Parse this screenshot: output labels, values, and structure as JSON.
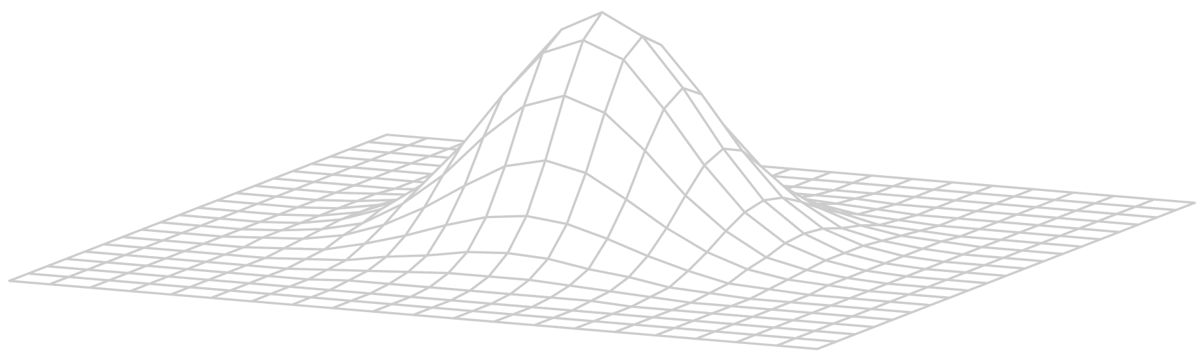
{
  "chart_data": {
    "type": "surface",
    "x": [
      -3,
      -2.7,
      -2.4,
      -2.1,
      -1.8,
      -1.5,
      -1.2,
      -0.9,
      -0.6,
      -0.3,
      0,
      0.3,
      0.6,
      0.9,
      1.2,
      1.5,
      1.8,
      2.1,
      2.4,
      2.7,
      3
    ],
    "y": [
      -3,
      -2.7,
      -2.4,
      -2.1,
      -1.8,
      -1.5,
      -1.2,
      -0.9,
      -0.6,
      -0.3,
      0,
      0.3,
      0.6,
      0.9,
      1.2,
      1.5,
      1.8,
      2.1,
      2.4,
      2.7,
      3
    ],
    "xlim": [
      -3,
      3
    ],
    "ylim": [
      -3,
      3
    ],
    "zlim": [
      0,
      1
    ],
    "color": "#cccccc",
    "fill": "#ffffff",
    "z": [
      [
        0,
        0,
        0,
        0,
        0,
        0,
        0,
        0,
        0,
        0,
        0,
        0,
        0,
        0,
        0,
        0,
        0,
        0,
        0,
        0,
        0
      ],
      [
        0,
        0,
        0,
        0,
        0,
        0,
        0,
        0,
        0,
        0,
        0,
        0,
        0,
        0,
        0,
        0,
        0,
        0,
        0,
        0,
        0
      ],
      [
        0,
        0,
        0,
        0,
        0,
        0,
        0,
        0,
        0,
        0,
        0,
        0,
        0,
        0,
        0,
        0,
        0,
        0,
        0,
        0,
        0
      ],
      [
        0,
        0,
        0,
        0,
        0,
        0,
        0,
        0.01,
        0.01,
        0.01,
        0.01,
        0.01,
        0.01,
        0.01,
        0,
        0,
        0,
        0,
        0,
        0,
        0
      ],
      [
        0,
        0,
        0,
        0,
        0,
        0,
        0.01,
        0.02,
        0.03,
        0.04,
        0.04,
        0.04,
        0.03,
        0.02,
        0.01,
        0,
        0,
        0,
        0,
        0,
        0
      ],
      [
        0,
        0,
        0,
        0,
        0,
        0.01,
        0.02,
        0.05,
        0.07,
        0.1,
        0.11,
        0.1,
        0.07,
        0.05,
        0.02,
        0.01,
        0,
        0,
        0,
        0,
        0
      ],
      [
        0,
        0,
        0,
        0,
        0.01,
        0.02,
        0.06,
        0.11,
        0.17,
        0.22,
        0.24,
        0.22,
        0.17,
        0.11,
        0.06,
        0.02,
        0.01,
        0,
        0,
        0,
        0
      ],
      [
        0,
        0,
        0,
        0.01,
        0.02,
        0.05,
        0.11,
        0.2,
        0.31,
        0.41,
        0.45,
        0.41,
        0.31,
        0.2,
        0.11,
        0.05,
        0.02,
        0.01,
        0,
        0,
        0
      ],
      [
        0,
        0,
        0,
        0.01,
        0.03,
        0.07,
        0.17,
        0.31,
        0.49,
        0.64,
        0.7,
        0.64,
        0.49,
        0.31,
        0.17,
        0.07,
        0.03,
        0.01,
        0,
        0,
        0
      ],
      [
        0,
        0,
        0,
        0.01,
        0.04,
        0.1,
        0.22,
        0.41,
        0.64,
        0.84,
        0.91,
        0.84,
        0.64,
        0.41,
        0.22,
        0.1,
        0.04,
        0.01,
        0,
        0,
        0
      ],
      [
        0,
        0,
        0,
        0.01,
        0.04,
        0.11,
        0.24,
        0.45,
        0.7,
        0.91,
        1,
        0.91,
        0.7,
        0.45,
        0.24,
        0.11,
        0.04,
        0.01,
        0,
        0,
        0
      ],
      [
        0,
        0,
        0,
        0.01,
        0.04,
        0.1,
        0.22,
        0.41,
        0.64,
        0.84,
        0.91,
        0.84,
        0.64,
        0.41,
        0.22,
        0.1,
        0.04,
        0.01,
        0,
        0,
        0
      ],
      [
        0,
        0,
        0,
        0.01,
        0.03,
        0.07,
        0.17,
        0.31,
        0.49,
        0.64,
        0.7,
        0.64,
        0.49,
        0.31,
        0.17,
        0.07,
        0.03,
        0.01,
        0,
        0,
        0
      ],
      [
        0,
        0,
        0,
        0.01,
        0.02,
        0.05,
        0.11,
        0.2,
        0.31,
        0.41,
        0.45,
        0.41,
        0.31,
        0.2,
        0.11,
        0.05,
        0.02,
        0.01,
        0,
        0,
        0
      ],
      [
        0,
        0,
        0,
        0,
        0.01,
        0.02,
        0.06,
        0.11,
        0.17,
        0.22,
        0.24,
        0.22,
        0.17,
        0.11,
        0.06,
        0.02,
        0.01,
        0,
        0,
        0,
        0
      ],
      [
        0,
        0,
        0,
        0,
        0,
        0.01,
        0.02,
        0.05,
        0.07,
        0.1,
        0.11,
        0.1,
        0.07,
        0.05,
        0.02,
        0.01,
        0,
        0,
        0,
        0,
        0
      ],
      [
        0,
        0,
        0,
        0,
        0,
        0,
        0.01,
        0.02,
        0.03,
        0.04,
        0.04,
        0.04,
        0.03,
        0.02,
        0.01,
        0,
        0,
        0,
        0,
        0,
        0
      ],
      [
        0,
        0,
        0,
        0,
        0,
        0,
        0,
        0.01,
        0.01,
        0.01,
        0.01,
        0.01,
        0.01,
        0.01,
        0,
        0,
        0,
        0,
        0,
        0,
        0
      ],
      [
        0,
        0,
        0,
        0,
        0,
        0,
        0,
        0,
        0,
        0,
        0,
        0,
        0,
        0,
        0,
        0,
        0,
        0,
        0,
        0,
        0
      ],
      [
        0,
        0,
        0,
        0,
        0,
        0,
        0,
        0,
        0,
        0,
        0,
        0,
        0,
        0,
        0,
        0,
        0,
        0,
        0,
        0,
        0
      ],
      [
        0,
        0,
        0,
        0,
        0,
        0,
        0,
        0,
        0,
        0,
        0,
        0,
        0,
        0,
        0,
        0,
        0,
        0,
        0,
        0,
        0
      ]
    ]
  }
}
